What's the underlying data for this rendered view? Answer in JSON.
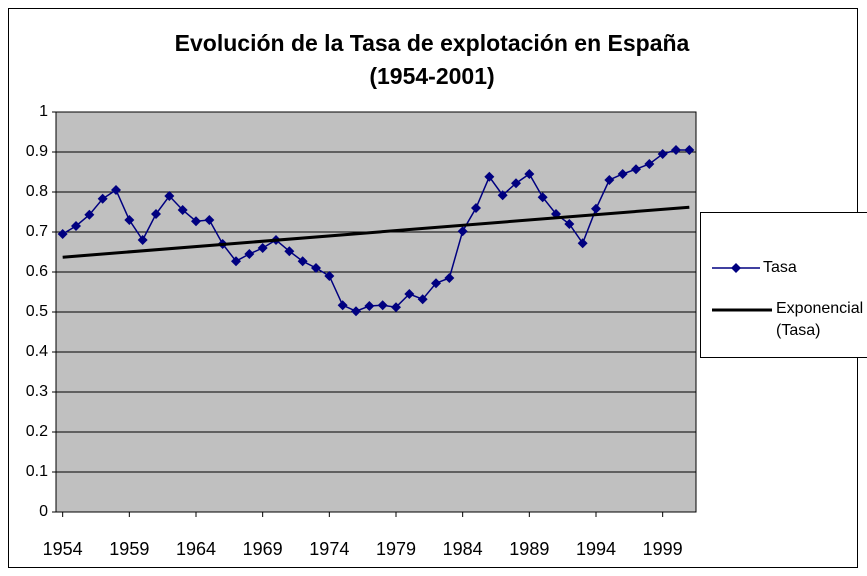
{
  "chart_data": {
    "type": "line",
    "title": [
      "Evolución de la Tasa de explotación en España",
      "(1954-2001)"
    ],
    "x": [
      1954,
      1955,
      1956,
      1957,
      1958,
      1959,
      1960,
      1961,
      1962,
      1963,
      1964,
      1965,
      1966,
      1967,
      1968,
      1969,
      1970,
      1971,
      1972,
      1973,
      1974,
      1975,
      1976,
      1977,
      1978,
      1979,
      1980,
      1981,
      1982,
      1983,
      1984,
      1985,
      1986,
      1987,
      1988,
      1989,
      1990,
      1991,
      1992,
      1993,
      1994,
      1995,
      1996,
      1997,
      1998,
      1999,
      2000,
      2001
    ],
    "series": [
      {
        "name": "Tasa",
        "color": "#000080",
        "marker": "diamond",
        "values": [
          0.695,
          0.715,
          0.743,
          0.783,
          0.805,
          0.73,
          0.68,
          0.745,
          0.79,
          0.755,
          0.727,
          0.73,
          0.67,
          0.627,
          0.645,
          0.66,
          0.68,
          0.652,
          0.627,
          0.61,
          0.59,
          0.517,
          0.502,
          0.515,
          0.517,
          0.512,
          0.545,
          0.532,
          0.572,
          0.585,
          0.702,
          0.76,
          0.838,
          0.792,
          0.822,
          0.845,
          0.787,
          0.745,
          0.72,
          0.672,
          0.758,
          0.83,
          0.845,
          0.857,
          0.87,
          0.895,
          0.905,
          0.905
        ]
      },
      {
        "name": "Exponencial (Tasa)",
        "color": "#000000",
        "x": [
          1954,
          2001
        ],
        "values": [
          0.637,
          0.762
        ]
      }
    ],
    "xlim": [
      1953.5,
      2001.5
    ],
    "xticks": [
      1954,
      1959,
      1964,
      1969,
      1974,
      1979,
      1984,
      1989,
      1994,
      1999
    ],
    "ylim": [
      0,
      1
    ],
    "yticks": [
      0,
      0.1,
      0.2,
      0.3,
      0.4,
      0.5,
      0.6,
      0.7,
      0.8,
      0.9,
      1
    ],
    "grid": true,
    "legend": "right"
  }
}
